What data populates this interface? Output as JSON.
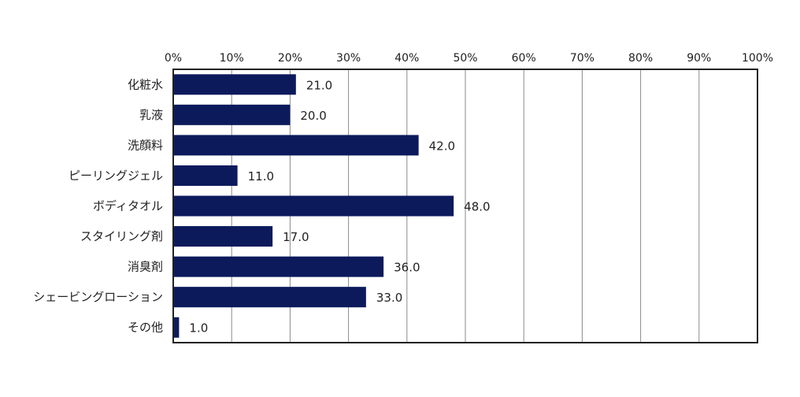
{
  "chart_data": {
    "type": "bar",
    "orientation": "horizontal",
    "categories": [
      "化粧水",
      "乳液",
      "洗顔料",
      "ピーリングジェル",
      "ボディタオル",
      "スタイリング剤",
      "消臭剤",
      "シェービングローション",
      "その他"
    ],
    "values": [
      21.0,
      20.0,
      42.0,
      11.0,
      48.0,
      17.0,
      36.0,
      33.0,
      1.0
    ],
    "data_labels": [
      "21.0",
      "20.0",
      "42.0",
      "11.0",
      "48.0",
      "17.0",
      "36.0",
      "33.0",
      "1.0"
    ],
    "xlim": [
      0,
      100
    ],
    "x_ticks": [
      0,
      10,
      20,
      30,
      40,
      50,
      60,
      70,
      80,
      90,
      100
    ],
    "x_tick_labels": [
      "0%",
      "10%",
      "20%",
      "30%",
      "40%",
      "50%",
      "60%",
      "70%",
      "80%",
      "90%",
      "100%"
    ],
    "x_axis_position": "top",
    "grid": true,
    "legend": false,
    "bar_color": "#0c1a5c"
  }
}
